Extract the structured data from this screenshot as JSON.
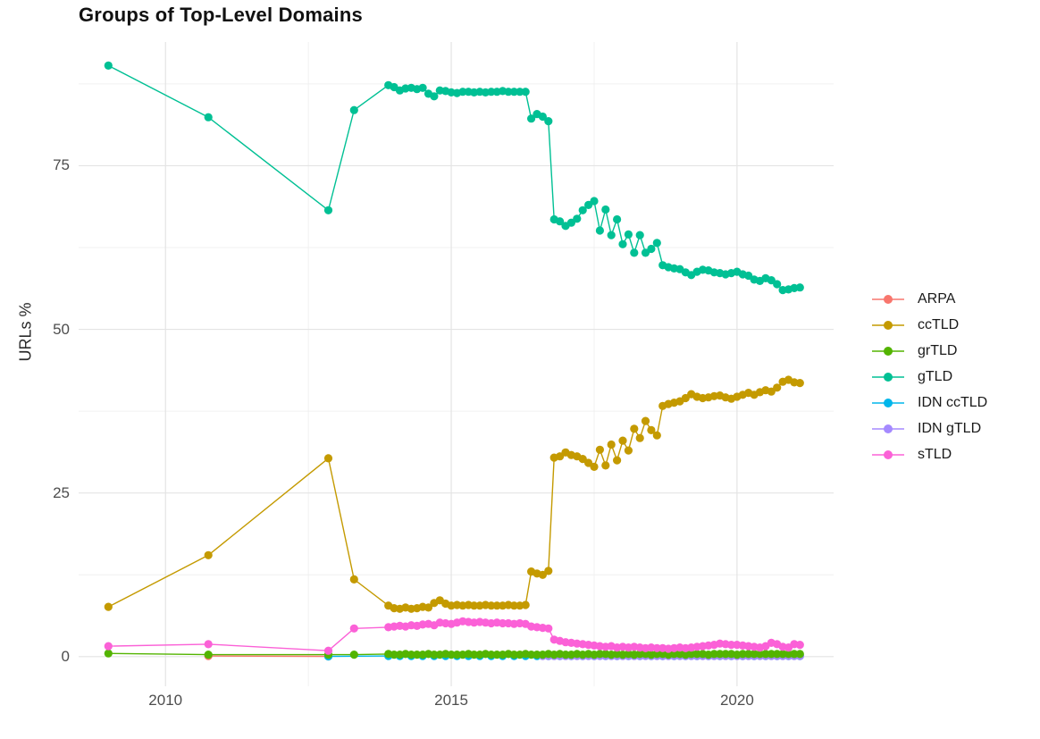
{
  "title": "Groups of Top-Level Domains",
  "axes": {
    "y_label": "URLs %",
    "x_ticks": [
      {
        "label": "2010",
        "value": 2010
      },
      {
        "label": "2015",
        "value": 2015
      },
      {
        "label": "2020",
        "value": 2020
      }
    ],
    "y_ticks": [
      {
        "label": "0",
        "value": 0
      },
      {
        "label": "25",
        "value": 25
      },
      {
        "label": "50",
        "value": 50
      },
      {
        "label": "75",
        "value": 75
      }
    ],
    "x_minor": [
      2012.5,
      2017.5
    ],
    "y_minor": [
      12.5,
      37.5,
      62.5,
      87.5
    ]
  },
  "legend": {
    "items": [
      {
        "label": "ARPA",
        "color": "#F8766D"
      },
      {
        "label": "ccTLD",
        "color": "#C49A00"
      },
      {
        "label": "grTLD",
        "color": "#53B400"
      },
      {
        "label": "gTLD",
        "color": "#00C094"
      },
      {
        "label": "IDN ccTLD",
        "color": "#00B6EB"
      },
      {
        "label": "IDN gTLD",
        "color": "#A58AFF"
      },
      {
        "label": "sTLD",
        "color": "#FB61D7"
      }
    ]
  },
  "chart_data": {
    "type": "line",
    "title": "Groups of Top-Level Domains",
    "xlabel": "",
    "ylabel": "URLs %",
    "xlim": [
      2008.48,
      2021.69
    ],
    "ylim": [
      -4.53,
      93.9
    ],
    "grid": true,
    "legend_position": "right",
    "marker": "point",
    "draw_order": [
      "ARPA",
      "IDN ccTLD",
      "IDN gTLD",
      "grTLD",
      "ccTLD",
      "gTLD",
      "sTLD"
    ],
    "series": [
      {
        "name": "ARPA",
        "color": "#F8766D",
        "early": [
          [
            2010.75,
            0.1
          ],
          [
            2012.85,
            0.05
          ]
        ],
        "dense": null
      },
      {
        "name": "ccTLD",
        "color": "#C49A00",
        "early": [
          [
            2009.0,
            7.6
          ],
          [
            2010.75,
            15.5
          ],
          [
            2012.85,
            30.3
          ],
          [
            2013.3,
            11.8
          ]
        ],
        "dense": {
          "start": 2013.9,
          "step": 0.1,
          "values": [
            7.8,
            7.4,
            7.3,
            7.5,
            7.3,
            7.4,
            7.6,
            7.5,
            8.2,
            8.6,
            8.1,
            7.8,
            7.9,
            7.8,
            7.9,
            7.8,
            7.8,
            7.9,
            7.8,
            7.8,
            7.8,
            7.9,
            7.8,
            7.8,
            7.9,
            13.0,
            12.7,
            12.5,
            13.1,
            30.4,
            30.6,
            31.2,
            30.8,
            30.6,
            30.2,
            29.6,
            29.0,
            31.6,
            29.2,
            32.4,
            30.0,
            33.0,
            31.5,
            34.8,
            33.4,
            36.0,
            34.6,
            33.8,
            38.3,
            38.6,
            38.8,
            39.0,
            39.5,
            40.1,
            39.7,
            39.5,
            39.6,
            39.8,
            39.9,
            39.6,
            39.4,
            39.7,
            40.0,
            40.3,
            40.0,
            40.4,
            40.7,
            40.5,
            41.1,
            42.0,
            42.3,
            41.9,
            41.8
          ]
        }
      },
      {
        "name": "grTLD",
        "color": "#53B400",
        "early": [
          [
            2009.0,
            0.5
          ],
          [
            2010.75,
            0.3
          ],
          [
            2012.85,
            0.3
          ],
          [
            2013.3,
            0.3
          ]
        ],
        "dense": {
          "start": 2013.9,
          "step": 0.1,
          "values": [
            0.4,
            0.3,
            0.3,
            0.4,
            0.3,
            0.3,
            0.3,
            0.4,
            0.3,
            0.3,
            0.4,
            0.3,
            0.3,
            0.3,
            0.4,
            0.3,
            0.3,
            0.4,
            0.3,
            0.3,
            0.3,
            0.4,
            0.3,
            0.3,
            0.4,
            0.3,
            0.3,
            0.3,
            0.4,
            0.3,
            0.4,
            0.3,
            0.3,
            0.4,
            0.3,
            0.4,
            0.3,
            0.4,
            0.4,
            0.3,
            0.4,
            0.3,
            0.4,
            0.3,
            0.4,
            0.4,
            0.3,
            0.4,
            0.4,
            0.3,
            0.4,
            0.4,
            0.3,
            0.4,
            0.4,
            0.4,
            0.3,
            0.4,
            0.4,
            0.4,
            0.4,
            0.3,
            0.4,
            0.4,
            0.4,
            0.4,
            0.4,
            0.4,
            0.4,
            0.4,
            0.4,
            0.4,
            0.4
          ]
        }
      },
      {
        "name": "gTLD",
        "color": "#00C094",
        "early": [
          [
            2009.0,
            90.3
          ],
          [
            2010.75,
            82.4
          ],
          [
            2012.85,
            68.2
          ],
          [
            2013.3,
            83.5
          ]
        ],
        "dense": {
          "start": 2013.9,
          "step": 0.1,
          "values": [
            87.3,
            87.0,
            86.5,
            86.8,
            86.9,
            86.7,
            86.9,
            86.0,
            85.6,
            86.5,
            86.4,
            86.2,
            86.1,
            86.3,
            86.3,
            86.2,
            86.3,
            86.2,
            86.3,
            86.3,
            86.4,
            86.3,
            86.3,
            86.3,
            86.3,
            82.2,
            82.9,
            82.5,
            81.8,
            66.8,
            66.5,
            65.8,
            66.3,
            66.9,
            68.2,
            69.0,
            69.6,
            65.1,
            68.3,
            64.4,
            66.8,
            63.0,
            64.5,
            61.7,
            64.4,
            61.7,
            62.3,
            63.2,
            59.8,
            59.5,
            59.3,
            59.2,
            58.7,
            58.3,
            58.8,
            59.1,
            59.0,
            58.7,
            58.6,
            58.4,
            58.6,
            58.8,
            58.4,
            58.2,
            57.6,
            57.4,
            57.8,
            57.5,
            56.9,
            56.0,
            56.1,
            56.3,
            56.4
          ]
        }
      },
      {
        "name": "IDN ccTLD",
        "color": "#00B6EB",
        "early": [
          [
            2012.85,
            0.05
          ]
        ],
        "dense": {
          "start": 2013.9,
          "step": 0.2,
          "values": [
            0.1,
            0.1,
            0.1,
            0.1,
            0.1,
            0.1,
            0.1,
            0.1,
            0.1,
            0.1,
            0.1,
            0.1,
            0.1,
            0.1,
            0.1,
            0.1,
            0.1,
            0.1,
            0.1,
            0.1,
            0.1,
            0.1,
            0.1,
            0.1,
            0.1,
            0.1,
            0.1,
            0.1,
            0.1,
            0.1,
            0.1,
            0.1,
            0.1,
            0.1,
            0.1,
            0.1,
            0.1
          ]
        }
      },
      {
        "name": "IDN gTLD",
        "color": "#A58AFF",
        "early": [],
        "dense": {
          "start": 2016.6,
          "step": 0.1,
          "values": [
            0.1,
            0.1,
            0.1,
            0.1,
            0.1,
            0.1,
            0.1,
            0.1,
            0.1,
            0.1,
            0.1,
            0.1,
            0.1,
            0.1,
            0.1,
            0.1,
            0.1,
            0.1,
            0.1,
            0.1,
            0.1,
            0.1,
            0.1,
            0.1,
            0.1,
            0.1,
            0.1,
            0.1,
            0.1,
            0.1,
            0.1,
            0.1,
            0.1,
            0.1,
            0.1,
            0.1,
            0.1,
            0.1,
            0.1,
            0.1,
            0.1,
            0.1,
            0.1,
            0.1,
            0.1,
            0.1
          ]
        }
      },
      {
        "name": "sTLD",
        "color": "#FB61D7",
        "early": [
          [
            2009.0,
            1.6
          ],
          [
            2010.75,
            1.9
          ],
          [
            2012.85,
            0.9
          ],
          [
            2013.3,
            4.3
          ]
        ],
        "dense": {
          "start": 2013.9,
          "step": 0.1,
          "values": [
            4.5,
            4.6,
            4.7,
            4.6,
            4.8,
            4.7,
            4.9,
            5.0,
            4.8,
            5.2,
            5.1,
            5.0,
            5.2,
            5.4,
            5.3,
            5.2,
            5.3,
            5.2,
            5.1,
            5.2,
            5.1,
            5.1,
            5.0,
            5.1,
            5.0,
            4.6,
            4.5,
            4.4,
            4.3,
            2.6,
            2.4,
            2.2,
            2.1,
            2.0,
            1.9,
            1.8,
            1.7,
            1.6,
            1.5,
            1.6,
            1.4,
            1.5,
            1.4,
            1.5,
            1.4,
            1.3,
            1.4,
            1.3,
            1.3,
            1.2,
            1.3,
            1.4,
            1.3,
            1.4,
            1.5,
            1.6,
            1.7,
            1.8,
            2.0,
            1.9,
            1.8,
            1.8,
            1.7,
            1.6,
            1.5,
            1.4,
            1.6,
            2.1,
            1.9,
            1.5,
            1.4,
            1.9,
            1.8
          ]
        }
      }
    ]
  },
  "style": {
    "grid_major_color": "#e4e4e4",
    "grid_minor_color": "#f0f0f0",
    "tick_label_color": "#4d4d4d"
  }
}
